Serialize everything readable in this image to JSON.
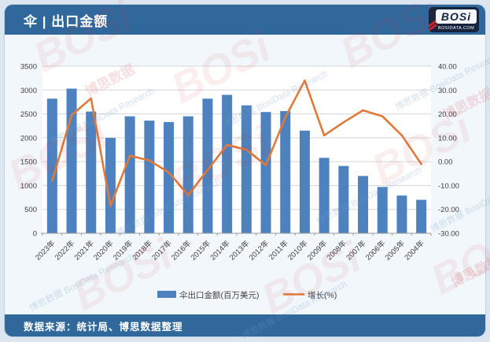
{
  "header": {
    "title": "伞 | 出口金额",
    "logo": {
      "word": "BOSi",
      "domain": "BOSIDATA.COM"
    }
  },
  "footer": {
    "source": "数据来源：统计局、博思数据整理"
  },
  "colors": {
    "page_bg": "#dce6f0",
    "body_bg": "#f2f7fb",
    "plot_bg": "#ffffff",
    "header_bg": "#31689c",
    "bar": "#4e82be",
    "line": "#e0793a",
    "grid": "#d6d6d6",
    "axis_line": "#9b9b9b",
    "axis_text": "#404040",
    "logo_bg": "#16233e",
    "logo_red": "#c9252c"
  },
  "chart_data": {
    "type": "bar+line",
    "title": "伞 | 出口金额",
    "categories": [
      "2023年",
      "2022年",
      "2021年",
      "2020年",
      "2019年",
      "2018年",
      "2017年",
      "2016年",
      "2015年",
      "2014年",
      "2013年",
      "2012年",
      "2011年",
      "2010年",
      "2009年",
      "2008年",
      "2007年",
      "2006年",
      "2005年",
      "2004年"
    ],
    "series": [
      {
        "name": "伞出口金额(百万美元)",
        "type": "bar",
        "axis": "left",
        "values": [
          2820,
          3030,
          2550,
          2000,
          2450,
          2360,
          2330,
          2450,
          2820,
          2900,
          2680,
          2540,
          2560,
          2150,
          1580,
          1410,
          1200,
          970,
          790,
          700
        ]
      },
      {
        "name": "增长(%)",
        "type": "line",
        "axis": "right",
        "values": [
          -8,
          19.5,
          26.5,
          -18.5,
          2.5,
          0.5,
          -4.5,
          -14,
          -3.5,
          7,
          5,
          -1.5,
          18.5,
          34,
          11,
          16.5,
          21.5,
          19,
          11,
          -1
        ]
      }
    ],
    "left_axis": {
      "min": 0,
      "max": 3500,
      "step": 500,
      "tick_labels": [
        "0",
        "500",
        "1000",
        "1500",
        "2000",
        "2500",
        "3000",
        "3500"
      ]
    },
    "right_axis": {
      "min": -30,
      "max": 40,
      "step": 10,
      "tick_labels": [
        "-30.00",
        "-20.00",
        "-10.00",
        "0.00",
        "10.00",
        "20.00",
        "30.00",
        "40.00"
      ]
    },
    "legend": [
      {
        "label": "伞出口金额(百万美元)",
        "marker": "bar"
      },
      {
        "label": "增长(%)",
        "marker": "line"
      }
    ],
    "grid": true,
    "legend_position": "bottom"
  },
  "watermarks": {
    "logo_word": "BOSi",
    "cn": "博思数据",
    "en": "BosiData Research"
  }
}
